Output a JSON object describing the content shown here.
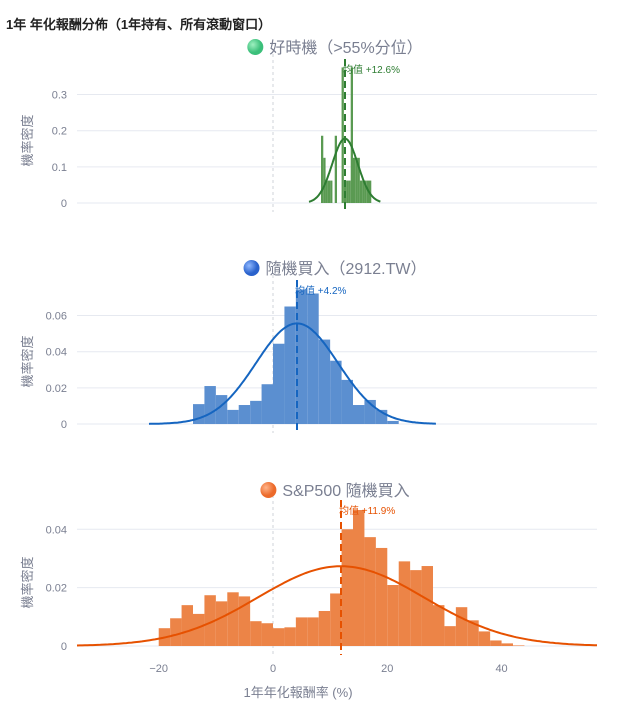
{
  "title": "1年 年化報酬分佈（1年持有、所有滾動窗口）",
  "chart_data": [
    {
      "type": "bar",
      "legend": "好時機（>55%分位）",
      "color": "#2e7d32",
      "bar_color": "#5a9a52",
      "marker_color": "#4fce8a",
      "ylabel": "機率密度",
      "yticks": [
        0,
        0.1,
        0.2,
        0.3
      ],
      "ytick_labels": [
        "0",
        "0.1",
        "0.2",
        "0.3"
      ],
      "ylim": [
        0,
        0.39
      ],
      "xlim": [
        -34.3,
        56.7
      ],
      "bin_start": 8.4,
      "bin_width": 0.4,
      "values": [
        0.186,
        0.125,
        0.062,
        0.062,
        0.062,
        0,
        0.186,
        0,
        0,
        0.375,
        0.062,
        0.062,
        0.062,
        0.375,
        0.125,
        0.125,
        0.125,
        0.062,
        0.062,
        0.062,
        0.062,
        0.062
      ],
      "fit": {
        "mean": 12.6,
        "sd": 2.24,
        "range": [
          6.3,
          18.8
        ]
      },
      "mean_label": "均值 +12.6%"
    },
    {
      "type": "bar",
      "legend": "隨機買入（2912.TW）",
      "color": "#1565c0",
      "bar_color": "#5b8fd0",
      "marker_color": "#3b7be0",
      "ylabel": "機率密度",
      "yticks": [
        0,
        0.02,
        0.04,
        0.06
      ],
      "ytick_labels": [
        "0",
        "0.02",
        "0.04",
        "0.06"
      ],
      "ylim": [
        0,
        0.078
      ],
      "xlim": [
        -34.3,
        56.7
      ],
      "bin_start": -14,
      "bin_width": 2,
      "values": [
        0.011,
        0.021,
        0.016,
        0.0078,
        0.0105,
        0.0128,
        0.022,
        0.0444,
        0.065,
        0.0744,
        0.0722,
        0.0467,
        0.035,
        0.0244,
        0.0105,
        0.0133,
        0.0078,
        0.0017
      ],
      "fit": {
        "mean": 4.2,
        "sd": 7.17,
        "range": [
          -21.7,
          28.5
        ]
      },
      "mean_label": "均值 +4.2%"
    },
    {
      "type": "bar",
      "legend": "S&P500 隨機買入",
      "color": "#e65100",
      "bar_color": "#ec8447",
      "marker_color": "#f07a3a",
      "ylabel": "機率密度",
      "yticks": [
        0,
        0.02,
        0.04
      ],
      "ytick_labels": [
        "0",
        "0.02",
        "0.04"
      ],
      "ylim": [
        0,
        0.049
      ],
      "xlim": [
        -34.3,
        56.7
      ],
      "bin_start": -20,
      "bin_width": 2,
      "values": [
        0.0061,
        0.0095,
        0.014,
        0.011,
        0.0174,
        0.0153,
        0.0184,
        0.017,
        0.0085,
        0.0078,
        0.0061,
        0.0064,
        0.0098,
        0.0098,
        0.012,
        0.018,
        0.04,
        0.0466,
        0.0373,
        0.0336,
        0.0209,
        0.029,
        0.026,
        0.0274,
        0.014,
        0.0068,
        0.0133,
        0.0088,
        0.005,
        0.0019,
        0.0009,
        0.0002
      ],
      "fit": {
        "mean": 11.9,
        "sd": 14.6,
        "range": [
          -34.3,
          56.7
        ]
      },
      "mean_label": "均值 +11.9%",
      "xticks": [
        -20,
        0,
        20,
        40
      ],
      "xtick_labels": [
        "−20",
        "0",
        "20",
        "40"
      ],
      "xlabel": "1年年化報酬率 (%)"
    }
  ]
}
